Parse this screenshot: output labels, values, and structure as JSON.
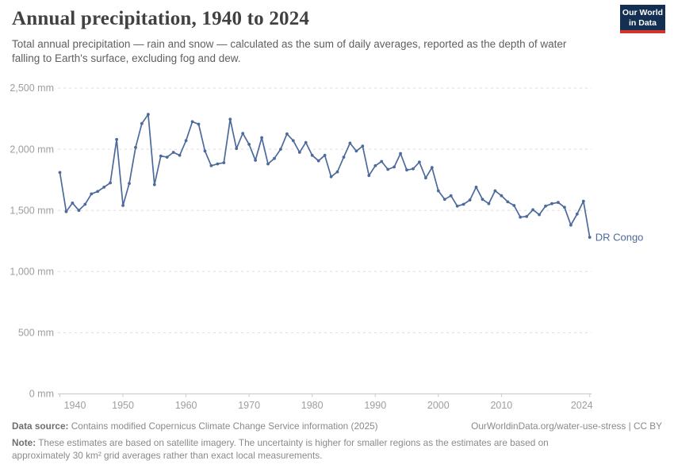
{
  "header": {
    "title": "Annual precipitation, 1940 to 2024",
    "subtitle": "Total annual precipitation — rain and snow — calculated as the sum of daily averages, reported as the depth of water falling to Earth's surface, excluding fog and dew.",
    "logo": {
      "line1": "Our World",
      "line2": "in Data"
    }
  },
  "chart_data": {
    "type": "line",
    "title": "Annual precipitation, 1940 to 2024",
    "entity": "DR Congo",
    "unit": "mm",
    "ylim": [
      0,
      2500
    ],
    "yticks": [
      0,
      500,
      1000,
      1500,
      2000,
      2500
    ],
    "ytick_labels": [
      "0 mm",
      "500 mm",
      "1,000 mm",
      "1,500 mm",
      "2,000 mm",
      "2,500 mm"
    ],
    "xticks": [
      1940,
      1950,
      1960,
      1970,
      1980,
      1990,
      2000,
      2010,
      2024
    ],
    "grid": "horizontal-dashed",
    "legend_position": "end-of-line-label",
    "years": [
      1940,
      1941,
      1942,
      1943,
      1944,
      1945,
      1946,
      1947,
      1948,
      1949,
      1950,
      1951,
      1952,
      1953,
      1954,
      1955,
      1956,
      1957,
      1958,
      1959,
      1960,
      1961,
      1962,
      1963,
      1964,
      1965,
      1966,
      1967,
      1968,
      1969,
      1970,
      1971,
      1972,
      1973,
      1974,
      1975,
      1976,
      1977,
      1978,
      1979,
      1980,
      1981,
      1982,
      1983,
      1984,
      1985,
      1986,
      1987,
      1988,
      1989,
      1990,
      1991,
      1992,
      1993,
      1994,
      1995,
      1996,
      1997,
      1998,
      1999,
      2000,
      2001,
      2002,
      2003,
      2004,
      2005,
      2006,
      2007,
      2008,
      2009,
      2010,
      2011,
      2012,
      2013,
      2014,
      2015,
      2016,
      2017,
      2018,
      2019,
      2020,
      2021,
      2022,
      2023,
      2024
    ],
    "values": [
      1810,
      1490,
      1560,
      1500,
      1550,
      1635,
      1655,
      1690,
      1725,
      2080,
      1540,
      1720,
      2015,
      2210,
      2285,
      1710,
      1945,
      1935,
      1975,
      1950,
      2070,
      2225,
      2205,
      1985,
      1865,
      1880,
      1890,
      2245,
      2005,
      2130,
      2040,
      1910,
      2095,
      1880,
      1925,
      2000,
      2125,
      2070,
      1975,
      2055,
      1950,
      1905,
      1950,
      1775,
      1815,
      1935,
      2050,
      1985,
      2025,
      1785,
      1865,
      1900,
      1835,
      1855,
      1965,
      1830,
      1840,
      1895,
      1765,
      1850,
      1660,
      1590,
      1620,
      1535,
      1550,
      1585,
      1690,
      1590,
      1555,
      1660,
      1620,
      1570,
      1540,
      1445,
      1450,
      1505,
      1465,
      1535,
      1555,
      1565,
      1525,
      1380,
      1470,
      1575,
      1280
    ]
  },
  "footer": {
    "source_label": "Data source:",
    "source_text": " Contains modified Copernicus Climate Change Service information (2025)",
    "citation": "OurWorldinData.org/water-use-stress | CC BY",
    "note_label": "Note:",
    "note_text": " These estimates are based on satellite imagery. The uncertainty is higher for smaller regions as the estimates are based on approximately 30 km² grid averages rather than exact local measurements."
  },
  "colors": {
    "line": "#4C6A9C",
    "series_label": "#4C6A9C",
    "grid": "#dddddd",
    "axis": "#c8c8c8",
    "tick_label": "#9e9e9e",
    "title": "#414141",
    "subtitle": "#5f5f5f",
    "footer": "#8a8a8a",
    "logo_bg": "#132f51",
    "logo_red": "#d0342c"
  }
}
